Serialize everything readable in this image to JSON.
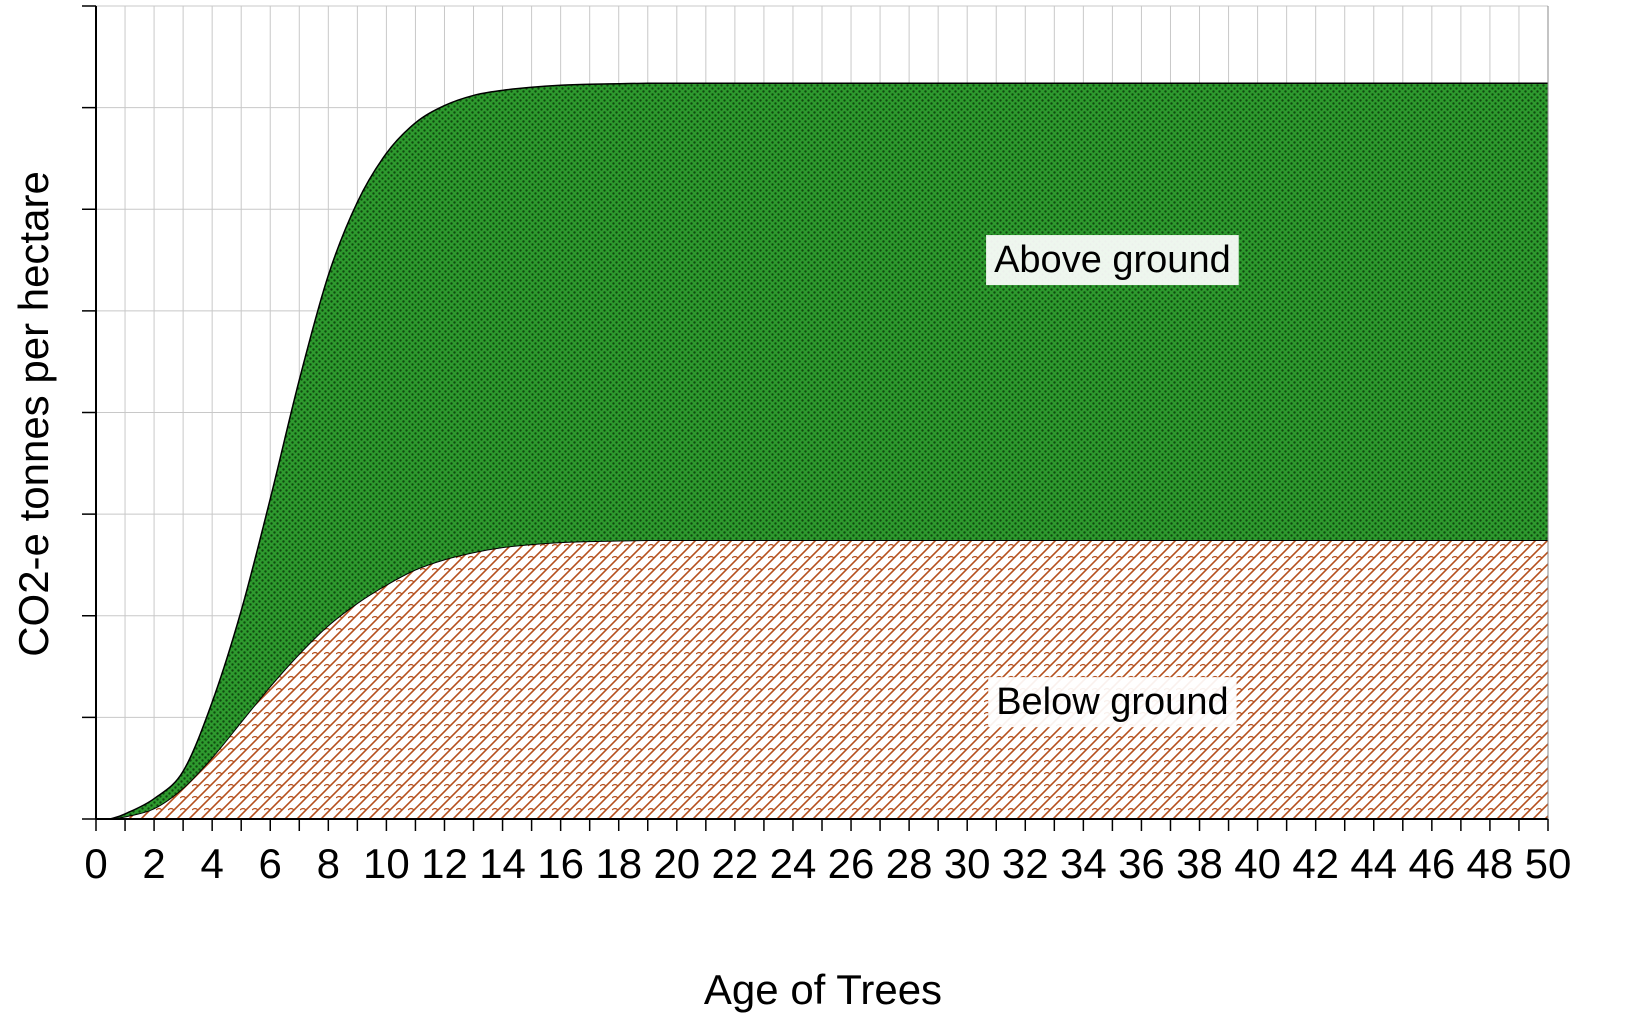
{
  "chart_data": {
    "type": "area",
    "stacked": true,
    "title": "",
    "xlabel": "Age of Trees",
    "ylabel": "CO2-e tonnes per hectare",
    "xlim": [
      0,
      50
    ],
    "ylim": [
      0,
      8
    ],
    "y_tick_labels_shown": false,
    "x_ticks": [
      "0",
      "2",
      "4",
      "6",
      "8",
      "10",
      "12",
      "14",
      "16",
      "18",
      "20",
      "22",
      "24",
      "26",
      "28",
      "30",
      "32",
      "34",
      "36",
      "38",
      "40",
      "42",
      "44",
      "46",
      "48",
      "50"
    ],
    "grid": true,
    "legend": "none",
    "x": [
      0.5,
      1,
      2,
      3,
      4,
      5,
      6,
      7,
      8,
      9,
      10,
      11,
      12,
      13,
      14,
      15,
      16,
      17,
      18,
      19,
      20,
      22,
      24,
      26,
      28,
      30,
      35,
      40,
      45,
      50
    ],
    "series": [
      {
        "name": "Below ground",
        "color": "#b5501e",
        "pattern": "crosshatch",
        "values": [
          0.0,
          0.02,
          0.1,
          0.3,
          0.6,
          0.95,
          1.3,
          1.62,
          1.9,
          2.12,
          2.3,
          2.45,
          2.55,
          2.62,
          2.67,
          2.7,
          2.72,
          2.73,
          2.735,
          2.74,
          2.74,
          2.74,
          2.74,
          2.74,
          2.74,
          2.74,
          2.74,
          2.74,
          2.74,
          2.74
        ]
      },
      {
        "name": "Above ground",
        "color": "#1f8a1f",
        "pattern": "dots",
        "values": [
          0.0,
          0.03,
          0.1,
          0.17,
          0.55,
          1.1,
          1.85,
          2.7,
          3.45,
          3.95,
          4.25,
          4.4,
          4.47,
          4.5,
          4.5,
          4.5,
          4.5,
          4.5,
          4.5,
          4.5,
          4.5,
          4.5,
          4.5,
          4.5,
          4.5,
          4.5,
          4.5,
          4.5,
          4.5,
          4.5
        ]
      }
    ],
    "annotations": [
      {
        "text": "Above ground",
        "x": 35,
        "y": 5.5
      },
      {
        "text": "Below ground",
        "x": 35,
        "y": 1.15
      }
    ]
  }
}
